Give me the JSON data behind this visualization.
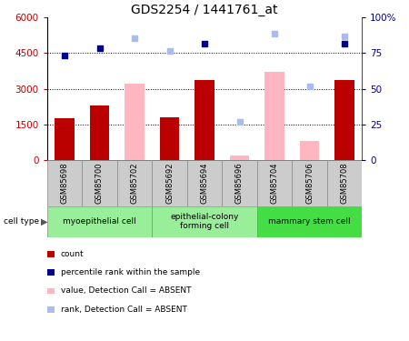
{
  "title": "GDS2254 / 1441761_at",
  "samples": [
    "GSM85698",
    "GSM85700",
    "GSM85702",
    "GSM85692",
    "GSM85694",
    "GSM85696",
    "GSM85704",
    "GSM85706",
    "GSM85708"
  ],
  "count_present": [
    1750,
    2300,
    null,
    1800,
    3350,
    null,
    null,
    null,
    3350
  ],
  "count_absent": [
    null,
    null,
    3200,
    null,
    null,
    200,
    3700,
    800,
    null
  ],
  "rank_present": [
    4400,
    4700,
    null,
    null,
    4900,
    null,
    null,
    null,
    4900
  ],
  "rank_absent": [
    null,
    null,
    5100,
    4600,
    null,
    1600,
    5300,
    3100,
    5200
  ],
  "ylim_left": [
    0,
    6000
  ],
  "ylim_right": [
    0,
    100
  ],
  "yticks_left": [
    0,
    1500,
    3000,
    4500,
    6000
  ],
  "yticks_right": [
    0,
    25,
    50,
    75,
    100
  ],
  "ytick_right_labels": [
    "0",
    "25",
    "50",
    "75",
    "100%"
  ],
  "count_color": "#BB0000",
  "count_absent_color": "#FFB6C1",
  "rank_color": "#00008B",
  "rank_absent_color": "#AABBEE",
  "cell_type_groups": [
    {
      "label": "myoepithelial cell",
      "start": 0,
      "end": 3,
      "color": "#99EE99"
    },
    {
      "label": "epithelial-colony\nforming cell",
      "start": 3,
      "end": 6,
      "color": "#99EE99"
    },
    {
      "label": "mammary stem cell",
      "start": 6,
      "end": 9,
      "color": "#44DD44"
    }
  ],
  "legend_items": [
    {
      "color": "#BB0000",
      "label": "count"
    },
    {
      "color": "#00008B",
      "label": "percentile rank within the sample"
    },
    {
      "color": "#FFB6C1",
      "label": "value, Detection Call = ABSENT"
    },
    {
      "color": "#AABBEE",
      "label": "rank, Detection Call = ABSENT"
    }
  ]
}
